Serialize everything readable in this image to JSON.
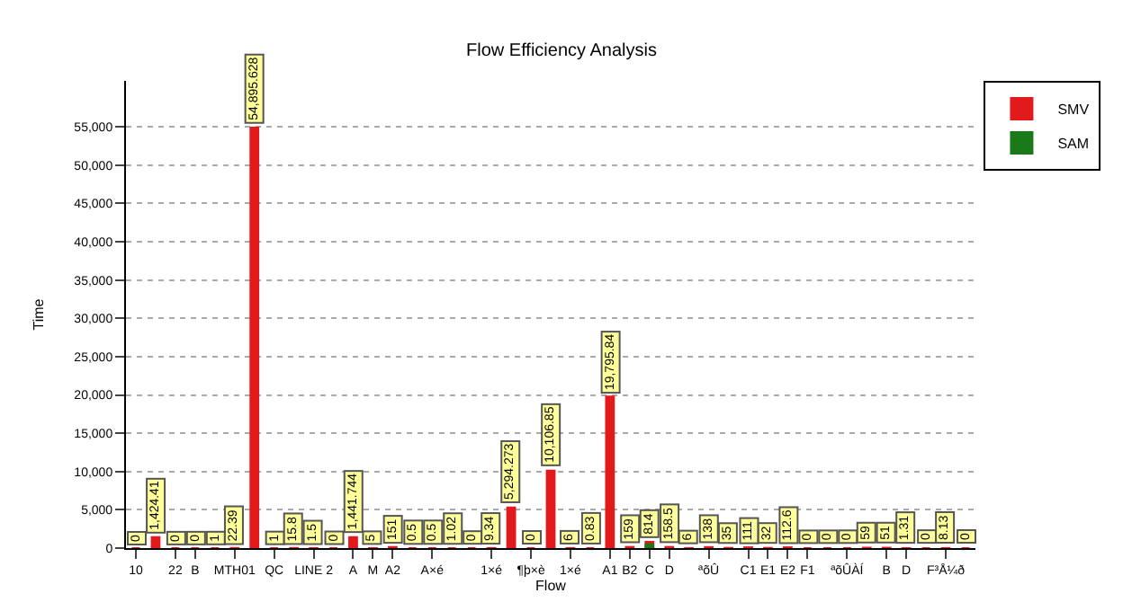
{
  "chart_data": {
    "type": "bar",
    "title": "Flow Efficiency Analysis",
    "xlabel": "Flow",
    "ylabel": "Time",
    "categories": [
      "10",
      null,
      "22",
      "B",
      null,
      "MTH01",
      null,
      "QC",
      null,
      "LINE 2",
      null,
      "A",
      "M",
      "A2",
      null,
      "A×é",
      null,
      null,
      "1×é",
      null,
      "¶þ×è",
      null,
      "1×é",
      null,
      "A1",
      "B2",
      "C",
      "D",
      null,
      "ªõÛ",
      null,
      "C1",
      "E1",
      "E2",
      "F1",
      null,
      "ªõÛÀÍ",
      null,
      "B",
      "D",
      null,
      "F³Å¼ð",
      null
    ],
    "series": [
      {
        "name": "SMV",
        "color": "#e31a1c",
        "values": [
          0,
          1424.41,
          0,
          0,
          1,
          22.39,
          54895.628,
          1,
          15.8,
          1.5,
          0,
          1441.744,
          5,
          151,
          0.5,
          0.5,
          1.02,
          0,
          9.34,
          5294.273,
          0,
          10106.85,
          6,
          0.83,
          19795.84,
          159,
          814,
          158.5,
          6,
          138,
          35,
          111,
          32,
          112.6,
          0,
          0,
          0,
          59,
          51,
          1.31,
          0,
          8.13,
          0
        ],
        "value_labels": [
          "0",
          "1,424.41",
          "0",
          "0",
          "1",
          "22.39",
          "54,895.628",
          "1",
          "15.8",
          "1.5",
          "0",
          "1,441.744",
          "5",
          "151",
          "0.5",
          "0.5",
          "1.02",
          "0",
          "9.34",
          "5,294.273",
          "0",
          "10,106.85",
          "6",
          "0.83",
          "19,795.84",
          "159",
          "814",
          "158.5",
          "6",
          "138",
          "35",
          "111",
          "32",
          "112.6",
          "0",
          "0",
          "0",
          "59",
          "51",
          "1.31",
          "0",
          "8.13",
          "0"
        ]
      },
      {
        "name": "SAM",
        "color": "#1a7a1a",
        "values": [
          null,
          null,
          null,
          null,
          null,
          null,
          null,
          null,
          null,
          null,
          null,
          null,
          null,
          null,
          null,
          null,
          null,
          null,
          null,
          null,
          null,
          null,
          null,
          null,
          null,
          null,
          500,
          null,
          null,
          null,
          null,
          null,
          null,
          null,
          null,
          null,
          null,
          null,
          null,
          null,
          null,
          null,
          null
        ]
      }
    ],
    "ylim": [
      0,
      61000
    ],
    "yticks": [
      0,
      {
        "value": 5000,
        "label": "5,000"
      },
      {
        "value": 10000,
        "label": "10,000"
      },
      {
        "value": 15000,
        "label": "15,000"
      },
      {
        "value": 20000,
        "label": "20,000"
      },
      {
        "value": 25000,
        "label": "25,000"
      },
      {
        "value": 30000,
        "label": "30,000"
      },
      {
        "value": 35000,
        "label": "35,000"
      },
      {
        "value": 40000,
        "label": "40,000"
      },
      {
        "value": 45000,
        "label": "45,000"
      },
      {
        "value": 50000,
        "label": "50,000"
      },
      {
        "value": 55000,
        "label": "55,000"
      }
    ],
    "grid": "y",
    "legend": "top right"
  }
}
